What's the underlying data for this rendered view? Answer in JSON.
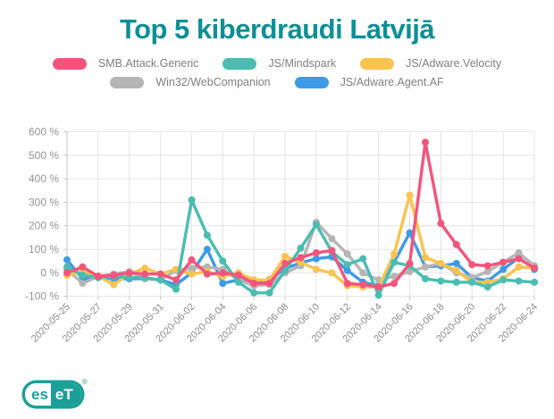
{
  "title": "Top 5 kiberdraudi Latvijā",
  "logo": {
    "left": "es",
    "right": "eT",
    "registered": "®"
  },
  "colors": {
    "title_teal": "#0e8f96",
    "logo_teal": "#1b9f99",
    "grid": "#e4e4e4",
    "axis": "#c6c6c6",
    "tick_text": "#949494"
  },
  "chart_data": {
    "type": "line",
    "title": "Top 5 kiberdraudi Latvijā",
    "ylabel": "",
    "xlabel": "",
    "y_unit": "%",
    "ylim": [
      -100,
      600
    ],
    "y_step": 100,
    "grid": true,
    "legend_position": "top",
    "x_label_every": 2,
    "categories": [
      "2020-05-25",
      "2020-05-26",
      "2020-05-27",
      "2020-05-28",
      "2020-05-29",
      "2020-05-30",
      "2020-05-31",
      "2020-06-01",
      "2020-06-02",
      "2020-06-03",
      "2020-06-04",
      "2020-06-05",
      "2020-06-06",
      "2020-06-07",
      "2020-06-08",
      "2020-06-09",
      "2020-06-10",
      "2020-06-11",
      "2020-06-12",
      "2020-06-13",
      "2020-06-14",
      "2020-06-15",
      "2020-06-16",
      "2020-06-17",
      "2020-06-18",
      "2020-06-19",
      "2020-06-20",
      "2020-06-21",
      "2020-06-22",
      "2020-06-23",
      "2020-06-24"
    ],
    "series": [
      {
        "name": "SMB.Attack.Generic",
        "color": "#f4547c",
        "values": [
          0,
          25,
          -15,
          -10,
          0,
          -5,
          -5,
          -30,
          55,
          -5,
          0,
          -10,
          -45,
          -45,
          40,
          65,
          85,
          95,
          -45,
          -50,
          -60,
          -45,
          40,
          555,
          210,
          120,
          35,
          30,
          45,
          60,
          20
        ]
      },
      {
        "name": "JS/Mindspark",
        "color": "#49bdb2",
        "values": [
          25,
          -10,
          -20,
          -15,
          -20,
          -20,
          -30,
          -70,
          310,
          160,
          50,
          -40,
          -85,
          -85,
          10,
          105,
          205,
          90,
          35,
          60,
          -95,
          45,
          30,
          -25,
          -35,
          -40,
          -40,
          -60,
          -30,
          -35,
          -40
        ]
      },
      {
        "name": "JS/Adware.Velocity",
        "color": "#fbc34f",
        "values": [
          -10,
          5,
          -15,
          -50,
          -5,
          20,
          -5,
          15,
          -5,
          5,
          -15,
          0,
          -30,
          -30,
          70,
          45,
          15,
          0,
          -55,
          -60,
          -60,
          80,
          330,
          65,
          40,
          10,
          -40,
          -40,
          -25,
          25,
          20
        ]
      },
      {
        "name": "Win32/WebCompanion",
        "color": "#b5b5b5",
        "values": [
          15,
          -45,
          -15,
          -5,
          5,
          -25,
          -30,
          10,
          20,
          25,
          15,
          -30,
          -55,
          -50,
          0,
          30,
          215,
          145,
          80,
          0,
          -30,
          -15,
          5,
          25,
          40,
          0,
          -20,
          5,
          45,
          85,
          30
        ]
      },
      {
        "name": "JS/Adware.Agent.AF",
        "color": "#3d9ae8",
        "values": [
          55,
          -25,
          -20,
          -25,
          -25,
          -25,
          -30,
          -50,
          0,
          100,
          -45,
          -30,
          -48,
          -28,
          18,
          43,
          60,
          68,
          10,
          -40,
          -55,
          45,
          170,
          25,
          30,
          40,
          -20,
          -35,
          15,
          65,
          15
        ]
      }
    ],
    "legend_rows": [
      [
        0,
        1,
        2
      ],
      [
        3,
        4
      ]
    ]
  }
}
